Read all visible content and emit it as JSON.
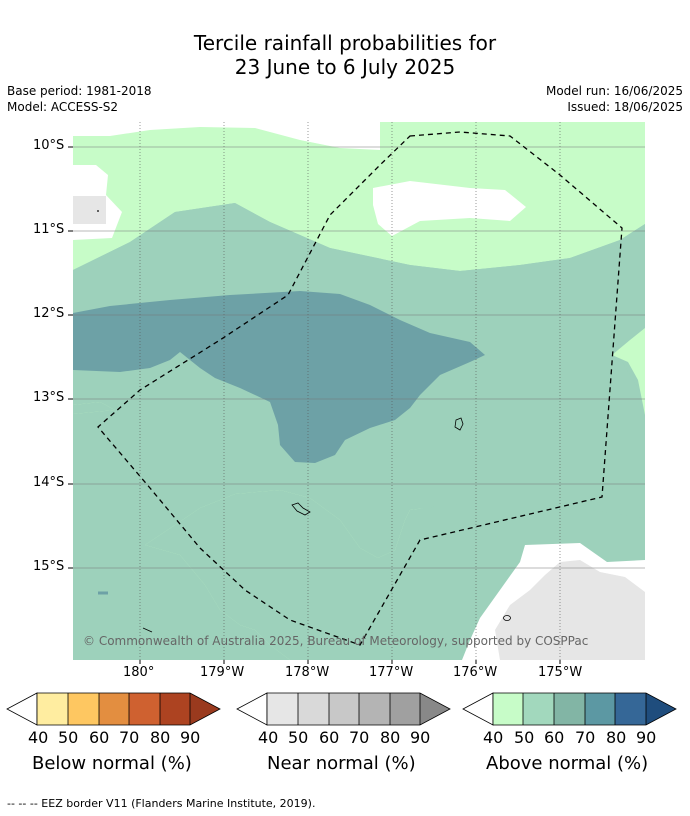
{
  "title": {
    "line1": "Tercile rainfall probabilities for",
    "line2": "23 June to 6 July 2025"
  },
  "meta": {
    "base_period": "Base period: 1981-2018",
    "model": "Model: ACCESS-S2",
    "model_run": "Model run: 16/06/2025",
    "issued": "Issued: 18/06/2025"
  },
  "map": {
    "lat_labels": [
      "10°S",
      "11°S",
      "12°S",
      "13°S",
      "14°S",
      "15°S"
    ],
    "lon_labels": [
      "180°",
      "179°W",
      "178°W",
      "177°W",
      "176°W",
      "175°W"
    ],
    "copyright": "© Commonwealth of Australia 2025, Bureau of Meteorology, supported by COSPPac"
  },
  "colorbars": [
    {
      "label": "Below normal (%)",
      "ticks": [
        "40",
        "50",
        "60",
        "70",
        "80",
        "90"
      ],
      "colors": [
        "#ffffff",
        "#ffeda0",
        "#fec761",
        "#e38e40",
        "#cf6130",
        "#ad4321",
        "#9a3a1e"
      ]
    },
    {
      "label": "Near normal (%)",
      "ticks": [
        "40",
        "50",
        "60",
        "70",
        "80",
        "90"
      ],
      "colors": [
        "#ffffff",
        "#e6e6e6",
        "#d9d9d9",
        "#c8c8c8",
        "#b4b4b4",
        "#a0a0a0",
        "#888888"
      ]
    },
    {
      "label": "Above normal (%)",
      "ticks": [
        "40",
        "50",
        "60",
        "70",
        "80",
        "90"
      ],
      "colors": [
        "#ffffff",
        "#c7fcc8",
        "#a2d8bd",
        "#82b5a5",
        "#5c98a3",
        "#356797",
        "#1f4d7d"
      ]
    }
  ],
  "eez_note": "--  --  -- EEZ border V11 (Flanders Marine Institute, 2019).",
  "colors": {
    "above_40_50": "#c7fcc8",
    "above_50_60": "#9dd1bb",
    "above_60_70": "#6da1a6",
    "near_40_50": "#e6e6e6"
  }
}
